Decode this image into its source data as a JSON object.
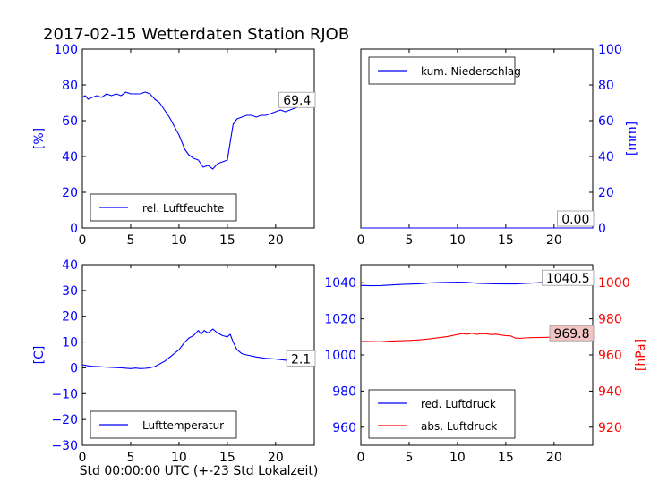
{
  "figure_title": "2017-02-15 Wetterdaten Station RJOB",
  "xlabel": "Std 00:00:00 UTC (+-23 Std Lokalzeit)",
  "colors": {
    "blue": "#0000ff",
    "red": "#ff0000",
    "black": "#000000"
  },
  "chart_data": [
    {
      "type": "line",
      "id": "humidity",
      "ylabel": "[%]",
      "ylabel_side": "left",
      "xlim": [
        0,
        24
      ],
      "ylim": [
        0,
        100
      ],
      "xticks": [
        "0",
        "5",
        "10",
        "15",
        "20"
      ],
      "yticks": [
        "0",
        "20",
        "40",
        "60",
        "80",
        "100"
      ],
      "legend": {
        "position": "lower-left",
        "entries": [
          "rel. Luftfeuchte"
        ]
      },
      "annotation": "69.4",
      "series": [
        {
          "name": "rel. Luftfeuchte",
          "color": "#0000ff",
          "x": [
            0,
            0.3,
            0.6,
            1,
            1.5,
            2,
            2.5,
            3,
            3.5,
            4,
            4.5,
            5,
            5.5,
            6,
            6.5,
            7,
            7.5,
            8,
            8.5,
            9,
            9.5,
            10,
            10.3,
            10.6,
            11,
            11.5,
            12,
            12.5,
            13,
            13.5,
            14,
            14.5,
            15,
            15.3,
            15.6,
            16,
            16.5,
            17,
            17.5,
            18,
            18.5,
            19,
            19.5,
            20,
            20.5,
            21,
            21.5,
            22,
            22.5,
            23,
            23.5,
            24
          ],
          "y": [
            73,
            74,
            72,
            73,
            74,
            73,
            75,
            74,
            75,
            74,
            76,
            75,
            75,
            75,
            76,
            75,
            72,
            70,
            66,
            62,
            57,
            52,
            48,
            44,
            41,
            39,
            38,
            34,
            35,
            33,
            36,
            37,
            38,
            48,
            58,
            61,
            62,
            63,
            63,
            62,
            63,
            63,
            64,
            65,
            66,
            65,
            66,
            67,
            68,
            68,
            69,
            69.4
          ]
        }
      ]
    },
    {
      "type": "line",
      "id": "precipitation",
      "ylabel": "[mm]",
      "ylabel_side": "right",
      "xlim": [
        0,
        24
      ],
      "ylim": [
        0,
        100
      ],
      "xticks": [
        "0",
        "5",
        "10",
        "15",
        "20"
      ],
      "yticks": [
        "0",
        "20",
        "40",
        "60",
        "80",
        "100"
      ],
      "legend": {
        "position": "upper-left",
        "entries": [
          "kum. Niederschlag"
        ]
      },
      "annotation": "0.00",
      "series": [
        {
          "name": "kum. Niederschlag",
          "color": "#0000ff",
          "x": [
            0,
            24
          ],
          "y": [
            0,
            0
          ]
        }
      ]
    },
    {
      "type": "line",
      "id": "temperature",
      "ylabel": "[C]",
      "ylabel_side": "left",
      "xlim": [
        0,
        24
      ],
      "ylim": [
        -30,
        40
      ],
      "xticks": [
        "0",
        "5",
        "10",
        "15",
        "20"
      ],
      "yticks": [
        "−30",
        "−20",
        "−10",
        "0",
        "10",
        "20",
        "30",
        "40"
      ],
      "legend": {
        "position": "lower-left",
        "entries": [
          "Lufttemperatur"
        ]
      },
      "annotation": "2.1",
      "series": [
        {
          "name": "Lufttemperatur",
          "color": "#0000ff",
          "x": [
            0,
            0.5,
            1,
            2,
            3,
            4,
            5,
            5.5,
            6,
            6.5,
            7,
            7.5,
            8,
            8.5,
            9,
            9.5,
            10,
            10.5,
            11,
            11.5,
            12,
            12.3,
            12.6,
            13,
            13.5,
            14,
            14.5,
            15,
            15.3,
            15.6,
            16,
            16.5,
            17,
            18,
            19,
            20,
            21,
            22,
            23,
            24
          ],
          "y": [
            1.2,
            0.8,
            0.6,
            0.4,
            0.2,
            0,
            -0.3,
            -0.1,
            -0.3,
            -0.2,
            0,
            0.5,
            1.5,
            2.5,
            4,
            5.5,
            7,
            9.5,
            11.5,
            12.5,
            14.5,
            13,
            14.5,
            13.5,
            15,
            13.5,
            12.5,
            12,
            13,
            10,
            7,
            5.5,
            5,
            4.2,
            3.7,
            3.4,
            3,
            2.6,
            2.3,
            2.1
          ]
        }
      ]
    },
    {
      "type": "line",
      "id": "pressure",
      "ylabel": "[hPa]",
      "ylabel_side": "right",
      "xlim": [
        0,
        24
      ],
      "ylim_left": [
        950,
        1050
      ],
      "ylim_right": [
        910,
        1010
      ],
      "xticks": [
        "0",
        "5",
        "10",
        "15",
        "20"
      ],
      "yticks_left": [
        "960",
        "980",
        "1000",
        "1020",
        "1040"
      ],
      "yticks_right": [
        "920",
        "940",
        "960",
        "980",
        "1000"
      ],
      "legend": {
        "position": "lower-left",
        "entries": [
          "red. Luftdruck",
          "abs. Luftdruck"
        ]
      },
      "annotations": [
        "1040.5",
        "969.8"
      ],
      "series": [
        {
          "name": "red. Luftdruck",
          "color": "#0000ff",
          "axis": "left",
          "x": [
            0,
            1,
            2,
            3,
            4,
            5,
            6,
            7,
            8,
            9,
            10,
            11,
            12,
            13,
            14,
            15,
            16,
            17,
            18,
            19,
            20,
            21,
            22,
            23,
            24
          ],
          "y": [
            1038.5,
            1038.3,
            1038.4,
            1038.7,
            1039,
            1039.2,
            1039.4,
            1039.8,
            1040.1,
            1040.2,
            1040.3,
            1040.2,
            1039.7,
            1039.5,
            1039.4,
            1039.3,
            1039.3,
            1039.6,
            1039.9,
            1040.2,
            1040.4,
            1040.5,
            1040.5,
            1040.5,
            1040.5
          ]
        },
        {
          "name": "abs. Luftdruck",
          "color": "#ff0000",
          "axis": "right",
          "x": [
            0,
            1,
            2,
            3,
            4,
            5,
            6,
            7,
            8,
            9,
            10,
            10.5,
            11,
            11.5,
            12,
            12.5,
            13,
            13.5,
            14,
            14.5,
            15,
            15.5,
            16,
            16.5,
            17,
            18,
            19,
            20,
            21,
            22,
            23,
            24
          ],
          "y": [
            967.5,
            967.4,
            967.3,
            967.6,
            967.8,
            968,
            968.3,
            968.8,
            969.5,
            970.2,
            971.3,
            971.8,
            971.5,
            972.0,
            971.4,
            971.8,
            971.7,
            971.3,
            971.5,
            971.0,
            970.7,
            970.5,
            969.3,
            969.2,
            969.4,
            969.6,
            969.7,
            969.9,
            969.8,
            969.8,
            969.8,
            969.8
          ]
        }
      ]
    }
  ]
}
